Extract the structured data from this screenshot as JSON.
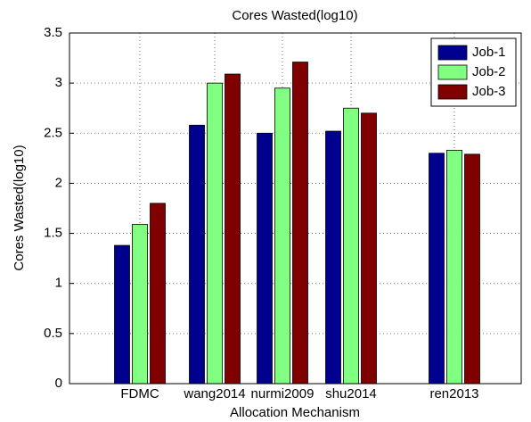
{
  "chart_data": {
    "type": "bar",
    "title": "Cores Wasted(log10)",
    "x_label": "Allocation Mechanism",
    "y_label": "Cores Wasted(log10)",
    "categories": [
      "FDMC",
      "wang2014",
      "nurmi2009",
      "shu2014",
      "ren2013"
    ],
    "series": [
      {
        "name": "Job-1",
        "color": "#00008f",
        "values": [
          1.38,
          2.58,
          2.5,
          2.52,
          2.3
        ]
      },
      {
        "name": "Job-2",
        "color": "#80ff80",
        "values": [
          1.59,
          3.0,
          2.95,
          2.75,
          2.33
        ]
      },
      {
        "name": "Job-3",
        "color": "#800000",
        "values": [
          1.8,
          3.09,
          3.21,
          2.7,
          2.29
        ]
      }
    ],
    "ylim": [
      0,
      3.5
    ],
    "yticks": [
      0,
      0.5,
      1,
      1.5,
      2,
      2.5,
      3,
      3.5
    ],
    "grid": true,
    "legend": "top-right"
  }
}
